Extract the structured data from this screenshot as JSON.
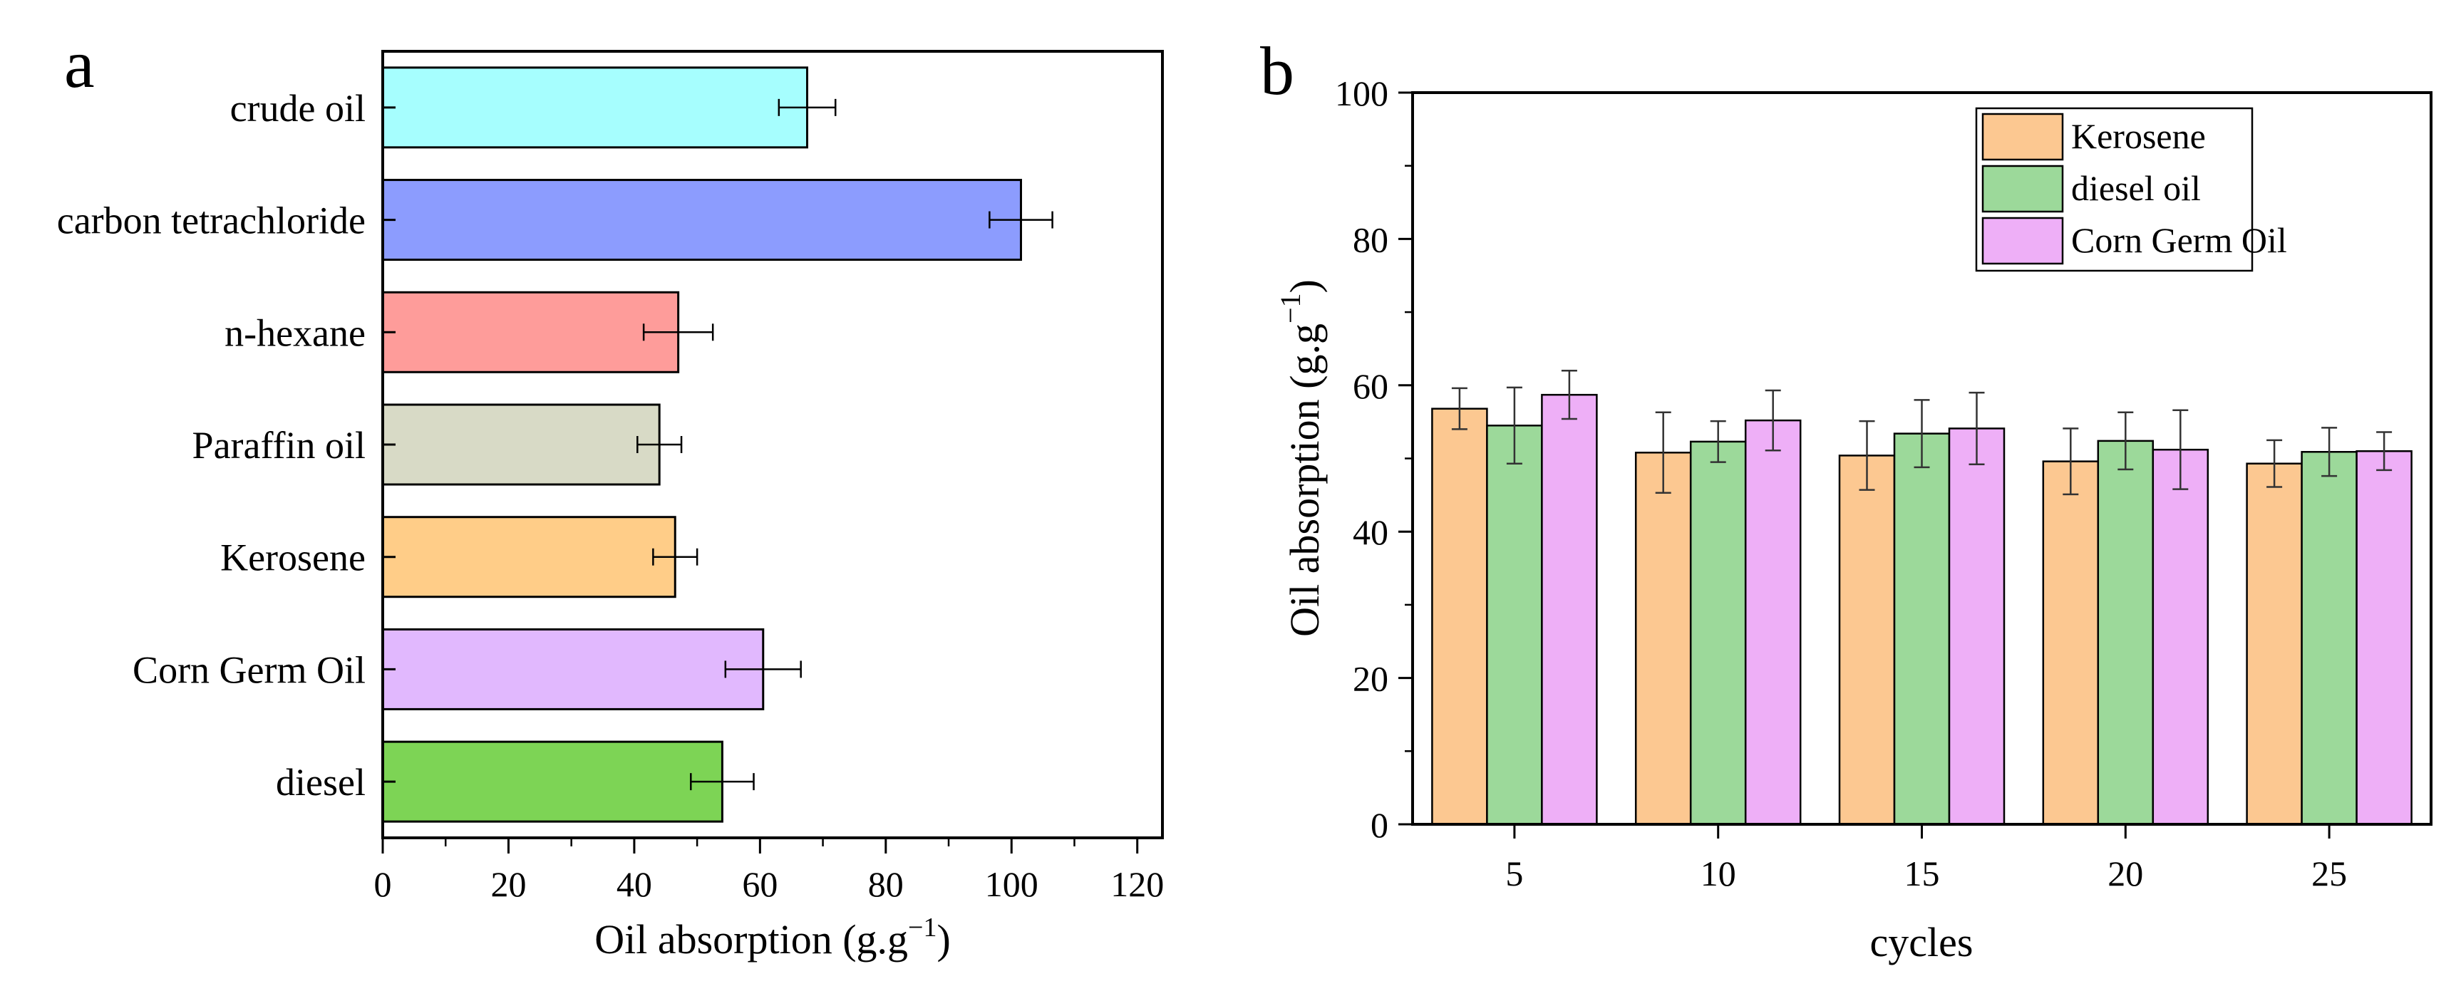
{
  "chart_data": [
    {
      "panel": "a",
      "type": "bar",
      "orientation": "horizontal",
      "categories": [
        "crude oil",
        "carbon tetrachloride",
        "n-hexane",
        "Paraffin oil",
        "Kerosene",
        "Corn Germ Oil",
        "diesel"
      ],
      "values": [
        67.5,
        101.5,
        47,
        44,
        46.5,
        60.5,
        54
      ],
      "errors": [
        4.5,
        5,
        5.5,
        3.5,
        3.5,
        6,
        5
      ],
      "colors": [
        "#a6fefe",
        "#8c9cfe",
        "#fe9c9a",
        "#d8dac6",
        "#ffcd88",
        "#e1b8fe",
        "#7dd455"
      ],
      "xlabel": "Oil absorption (g.g",
      "xlabel_sup": "−1",
      "xlabel_close": ")",
      "xlim": [
        0,
        124
      ],
      "xticks": [
        0,
        20,
        40,
        60,
        80,
        100,
        120
      ],
      "grid": false
    },
    {
      "panel": "b",
      "type": "bar",
      "orientation": "vertical",
      "categories": [
        "5",
        "10",
        "15",
        "20",
        "25"
      ],
      "series": [
        {
          "name": "Kerosene",
          "color": "#fcc891",
          "values": [
            56.8,
            50.8,
            50.4,
            49.6,
            49.3
          ],
          "errors": [
            2.8,
            5.5,
            4.7,
            4.5,
            3.2
          ]
        },
        {
          "name": "diesel oil",
          "color": "#9cd99a",
          "values": [
            54.5,
            52.3,
            53.4,
            52.4,
            50.9
          ],
          "errors": [
            5.2,
            2.8,
            4.6,
            3.9,
            3.3
          ]
        },
        {
          "name": "Corn Germ Oil",
          "color": "#eeaff7",
          "values": [
            58.7,
            55.2,
            54.1,
            51.2,
            51.0
          ],
          "errors": [
            3.3,
            4.1,
            4.9,
            5.4,
            2.6
          ]
        }
      ],
      "xlabel": "cycles",
      "ylabel": "Oil absorption (g.g",
      "ylabel_sup": "−1",
      "ylabel_close": ")",
      "ylim": [
        0,
        100
      ],
      "yticks": [
        0,
        20,
        40,
        60,
        80,
        100
      ],
      "legend_position": "top-right",
      "grid": false
    }
  ],
  "panels": {
    "a": "a",
    "b": "b"
  }
}
